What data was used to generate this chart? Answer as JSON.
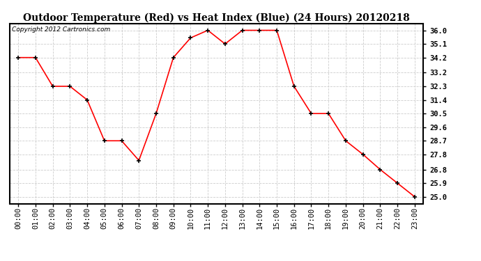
{
  "title": "Outdoor Temperature (Red) vs Heat Index (Blue) (24 Hours) 20120218",
  "copyright": "Copyright 2012 Cartronics.com",
  "x_labels": [
    "00:00",
    "01:00",
    "02:00",
    "03:00",
    "04:00",
    "05:00",
    "06:00",
    "07:00",
    "08:00",
    "09:00",
    "10:00",
    "11:00",
    "12:00",
    "13:00",
    "14:00",
    "15:00",
    "16:00",
    "17:00",
    "18:00",
    "19:00",
    "20:00",
    "21:00",
    "22:00",
    "23:00"
  ],
  "temp_red": [
    34.2,
    34.2,
    32.3,
    32.3,
    31.4,
    28.7,
    28.7,
    27.4,
    30.5,
    34.2,
    35.5,
    36.0,
    35.1,
    36.0,
    36.0,
    36.0,
    32.3,
    30.5,
    30.5,
    28.7,
    27.8,
    26.8,
    25.9,
    25.0
  ],
  "temp_blue": [
    34.2,
    34.2,
    32.3,
    32.3,
    31.4,
    28.7,
    28.7,
    27.4,
    30.5,
    34.2,
    35.5,
    36.0,
    35.1,
    36.0,
    36.0,
    36.0,
    32.3,
    30.5,
    30.5,
    28.7,
    27.8,
    26.8,
    25.9,
    25.0
  ],
  "y_ticks": [
    25.0,
    25.9,
    26.8,
    27.8,
    28.7,
    29.6,
    30.5,
    31.4,
    32.3,
    33.2,
    34.2,
    35.1,
    36.0
  ],
  "ylim": [
    24.55,
    36.45
  ],
  "line_color_red": "#ff0000",
  "line_color_blue": "#0000ff",
  "background_color": "#ffffff",
  "grid_color": "#cccccc",
  "title_fontsize": 10,
  "copyright_fontsize": 6.5,
  "tick_fontsize": 7.5,
  "ytick_fontsize": 7.5
}
